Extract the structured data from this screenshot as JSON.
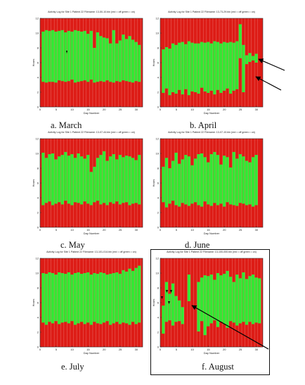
{
  "colors": {
    "off": "#dd1c16",
    "on": "#33e833",
    "axis": "#333333",
    "arrow": "#000000"
  },
  "chart_data": [
    {
      "type": "bar",
      "title": "Activity Log for Site 1 Patient 22 Filename: 13-50-10.bin (red = off green = on)",
      "caption": "a.  March",
      "xlabel": "Day Number",
      "ylabel": "Hours",
      "xlim": [
        0,
        32
      ],
      "ylim": [
        0,
        12
      ],
      "xticks": [
        "0",
        "5",
        "10",
        "15",
        "20",
        "25",
        "30"
      ],
      "yticks": [
        "0",
        "2",
        "4",
        "6",
        "8",
        "10",
        "12"
      ],
      "days": 31,
      "on_start": [
        3.4,
        3.3,
        3.4,
        3.4,
        3.3,
        3.6,
        3.5,
        3.4,
        3.5,
        3.7,
        3.3,
        3.4,
        3.5,
        3.6,
        3.4,
        3.7,
        3.3,
        3.4,
        3.5,
        3.4,
        3.6,
        3.4,
        3.3,
        3.5,
        3.4,
        3.6,
        3.5,
        3.4,
        3.3,
        3.5,
        3.4
      ],
      "on_end": [
        10.2,
        10.4,
        10.3,
        10.4,
        10.2,
        10.3,
        10.4,
        10.1,
        10.3,
        10.2,
        10.4,
        10.3,
        10.2,
        10.3,
        9.9,
        10.3,
        8.0,
        10.1,
        9.6,
        9.4,
        9.3,
        8.6,
        10.4,
        8.6,
        9.0,
        9.8,
        9.2,
        9.6,
        9.1,
        8.8,
        8.4
      ]
    },
    {
      "type": "bar",
      "title": "Activity Log for Site 1 Patient 22 Filename: 13-73-29.bin (red = off green = on)",
      "caption": "b.  April",
      "xlabel": "Day Number",
      "ylabel": "Hours",
      "xlim": [
        0,
        32
      ],
      "ylim": [
        0,
        12
      ],
      "xticks": [
        "0",
        "5",
        "10",
        "15",
        "20",
        "25",
        "30"
      ],
      "yticks": [
        "0",
        "2",
        "4",
        "6",
        "8",
        "10",
        "12"
      ],
      "days": 30,
      "on_start": [
        1.9,
        2.5,
        1.6,
        2.0,
        1.8,
        2.3,
        1.7,
        2.4,
        1.6,
        2.1,
        2.0,
        1.8,
        2.6,
        2.1,
        1.9,
        2.2,
        1.7,
        2.3,
        1.9,
        2.2,
        2.5,
        1.8,
        2.2,
        2.4,
        6.6,
        2.0,
        5.8,
        6.1,
        6.3,
        6.0
      ],
      "on_end": [
        7.8,
        8.1,
        7.9,
        8.6,
        8.4,
        8.7,
        8.8,
        8.5,
        8.9,
        8.7,
        8.6,
        8.6,
        8.8,
        8.7,
        8.8,
        8.6,
        8.9,
        8.8,
        8.6,
        8.8,
        8.7,
        8.8,
        8.7,
        8.9,
        11.2,
        8.4,
        7.0,
        7.3,
        6.9,
        7.2
      ]
    },
    {
      "type": "bar",
      "title": "Activity Log for Site 1 Patient 22 Filename: 13-07-44.bin (red = off green = on)",
      "caption": "c.  May",
      "xlabel": "Day Number",
      "ylabel": "Hours",
      "xlim": [
        0,
        32
      ],
      "ylim": [
        0,
        12
      ],
      "xticks": [
        "0",
        "5",
        "10",
        "15",
        "20",
        "25",
        "30"
      ],
      "yticks": [
        "0",
        "2",
        "4",
        "6",
        "8",
        "10",
        "12"
      ],
      "days": 31,
      "on_start": [
        3.0,
        3.3,
        3.5,
        3.0,
        3.2,
        3.4,
        3.1,
        3.6,
        3.2,
        3.0,
        3.4,
        3.3,
        3.1,
        3.5,
        3.2,
        3.0,
        3.4,
        3.6,
        3.1,
        3.3,
        3.0,
        3.4,
        3.2,
        3.5,
        3.1,
        3.3,
        3.4,
        3.0,
        3.2,
        3.3,
        3.1
      ],
      "on_end": [
        10.1,
        9.4,
        9.9,
        10.0,
        9.2,
        9.6,
        9.8,
        10.2,
        9.7,
        9.9,
        9.4,
        10.0,
        9.6,
        9.3,
        9.8,
        7.5,
        8.2,
        9.4,
        9.8,
        10.3,
        9.0,
        9.6,
        9.9,
        9.2,
        9.8,
        9.5,
        9.7,
        9.6,
        9.4,
        9.1,
        9.8
      ]
    },
    {
      "type": "bar",
      "title": "Activity Log for Site 1 Patient 22 Filename: 13-07-10.bin (red = off green = on)",
      "caption": "d.  June",
      "xlabel": "Day Number",
      "ylabel": "Hours",
      "xlim": [
        0,
        32
      ],
      "ylim": [
        0,
        12
      ],
      "xticks": [
        "0",
        "5",
        "10",
        "15",
        "20",
        "25",
        "30"
      ],
      "yticks": [
        "0",
        "2",
        "4",
        "6",
        "8",
        "10",
        "12"
      ],
      "days": 30,
      "on_start": [
        3.4,
        2.7,
        3.2,
        3.6,
        3.0,
        2.8,
        3.3,
        3.1,
        2.9,
        3.2,
        3.4,
        3.0,
        2.8,
        3.5,
        3.1,
        2.9,
        3.3,
        3.0,
        3.2,
        2.8,
        3.4,
        3.1,
        3.0,
        2.9,
        3.3,
        3.2,
        3.0,
        3.1,
        2.8,
        3.0
      ],
      "on_end": [
        8.2,
        9.4,
        8.0,
        9.0,
        10.1,
        8.6,
        9.2,
        9.8,
        9.6,
        8.4,
        9.3,
        9.9,
        10.0,
        9.5,
        8.8,
        9.9,
        10.2,
        9.8,
        8.5,
        9.7,
        9.5,
        8.1,
        10.2,
        9.3,
        9.9,
        9.6,
        9.0,
        8.8,
        9.5,
        9.8
      ]
    },
    {
      "type": "bar",
      "title": "Activity Log for Site 1 Patient 22 Filename: 13-101-014.bin (red = off green = on)",
      "caption": "e.  July",
      "xlabel": "Day Number",
      "ylabel": "Hours",
      "xlim": [
        0,
        32
      ],
      "ylim": [
        0,
        12
      ],
      "xticks": [
        "0",
        "5",
        "10",
        "15",
        "20",
        "25",
        "30"
      ],
      "yticks": [
        "0",
        "2",
        "4",
        "6",
        "8",
        "10",
        "12"
      ],
      "days": 31,
      "on_start": [
        3.3,
        3.0,
        3.4,
        3.2,
        3.5,
        3.1,
        3.3,
        3.4,
        3.2,
        3.5,
        3.0,
        3.2,
        3.4,
        3.1,
        3.3,
        3.0,
        3.4,
        3.2,
        3.1,
        3.3,
        3.5,
        3.0,
        3.2,
        3.4,
        3.1,
        3.3,
        3.2,
        3.0,
        3.4,
        3.1,
        3.3
      ],
      "on_end": [
        10.0,
        9.9,
        10.1,
        10.0,
        9.8,
        10.1,
        10.0,
        9.9,
        10.1,
        9.8,
        10.0,
        10.1,
        9.9,
        10.0,
        10.1,
        9.8,
        10.0,
        9.9,
        10.1,
        10.0,
        9.8,
        9.9,
        10.0,
        10.1,
        9.9,
        10.4,
        10.2,
        10.6,
        10.3,
        10.7,
        11.0
      ]
    },
    {
      "type": "bar",
      "title": "Activity Log for Site 1 Patient 22 Filename: 13-100-000.bin (red = off green = on)",
      "caption": "f.  August",
      "xlabel": "Day Number",
      "ylabel": "Hours",
      "xlim": [
        0,
        32
      ],
      "ylim": [
        0,
        12
      ],
      "xticks": [
        "0",
        "5",
        "10",
        "15",
        "20",
        "25",
        "30"
      ],
      "yticks": [
        "0",
        "2",
        "4",
        "6",
        "8",
        "10",
        "12"
      ],
      "days": 31,
      "on_start": [
        1.8,
        3.4,
        3.6,
        2.9,
        3.4,
        3.5,
        3.1,
        3.6,
        6.2,
        3.4,
        3.3,
        2.1,
        3.5,
        1.6,
        2.8,
        3.2,
        3.6,
        2.7,
        3.4,
        3.1,
        2.6,
        3.5,
        3.3,
        2.9,
        3.2,
        3.4,
        3.0,
        3.4,
        3.1,
        3.3,
        3.2
      ],
      "on_end": [
        5.6,
        8.8,
        7.2,
        8.6,
        6.9,
        6.3,
        5.4,
        3.6,
        9.8,
        3.4,
        3.3,
        8.8,
        9.4,
        9.7,
        9.6,
        9.8,
        9.1,
        10.0,
        9.7,
        9.9,
        10.3,
        9.5,
        8.8,
        9.8,
        9.3,
        10.1,
        9.2,
        9.6,
        9.8,
        9.4,
        9.3
      ]
    }
  ]
}
